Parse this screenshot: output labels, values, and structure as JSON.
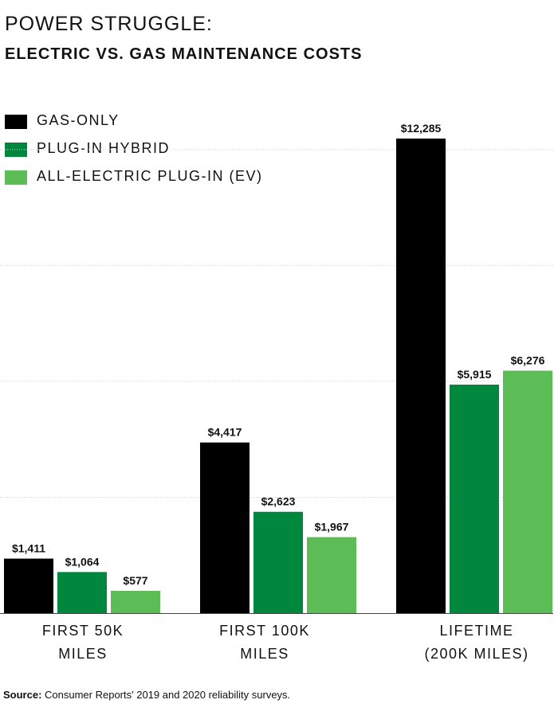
{
  "title": "POWER STRUGGLE:",
  "subtitle": "ELECTRIC VS. GAS MAINTENANCE COSTS",
  "legend": [
    {
      "label": "GAS-ONLY",
      "color": "#000000"
    },
    {
      "label": "PLUG-IN HYBRID",
      "color": "#00873e"
    },
    {
      "label": "ALL-ELECTRIC PLUG-IN (EV)",
      "color": "#5cbd57"
    }
  ],
  "categories": [
    {
      "line1": "FIRST 50K",
      "line2": "MILES"
    },
    {
      "line1": "FIRST 100K",
      "line2": "MILES"
    },
    {
      "line1": "LIFETIME",
      "line2": "(200K MILES)"
    }
  ],
  "source": {
    "label": "Source:",
    "text": " Consumer Reports' 2019 and 2020 reliability surveys."
  },
  "chart_data": {
    "type": "bar",
    "title": "POWER STRUGGLE:",
    "subtitle": "ELECTRIC VS. GAS MAINTENANCE COSTS",
    "categories": [
      "FIRST 50K MILES",
      "FIRST 100K MILES",
      "LIFETIME (200K MILES)"
    ],
    "series": [
      {
        "name": "GAS-ONLY",
        "values": [
          1411,
          4417,
          12285
        ],
        "labels": [
          "$1,411",
          "$4,417",
          "$12,285"
        ],
        "color": "#000000"
      },
      {
        "name": "PLUG-IN HYBRID",
        "values": [
          1064,
          2623,
          5915
        ],
        "labels": [
          "$1,064",
          "$2,623",
          "$5,915"
        ],
        "color": "#00873e"
      },
      {
        "name": "ALL-ELECTRIC PLUG-IN (EV)",
        "values": [
          577,
          1967,
          6276
        ],
        "labels": [
          "$577",
          "$1,967",
          "$6,276"
        ],
        "color": "#5cbd57"
      }
    ],
    "ylim": [
      0,
      12285
    ],
    "grid": true,
    "legend_position": "top-left"
  }
}
